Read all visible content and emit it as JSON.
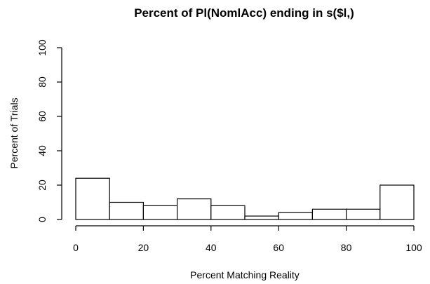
{
  "chart_data": {
    "type": "bar",
    "title": "Percent of Pl(NomlAcc) ending in s($l,)",
    "xlabel": "Percent Matching Reality",
    "ylabel": "Percent of Trials",
    "bins": [
      [
        0,
        10
      ],
      [
        10,
        20
      ],
      [
        20,
        30
      ],
      [
        30,
        40
      ],
      [
        40,
        50
      ],
      [
        50,
        60
      ],
      [
        60,
        70
      ],
      [
        70,
        80
      ],
      [
        80,
        90
      ],
      [
        90,
        100
      ]
    ],
    "values": [
      24,
      10,
      8,
      12,
      8,
      2,
      4,
      6,
      6,
      20
    ],
    "xlim": [
      0,
      100
    ],
    "ylim": [
      0,
      100
    ],
    "xticks": [
      "0",
      "20",
      "40",
      "60",
      "80",
      "100"
    ],
    "yticks": [
      "0",
      "20",
      "40",
      "60",
      "80",
      "100"
    ],
    "grid": false,
    "legend": "none"
  }
}
